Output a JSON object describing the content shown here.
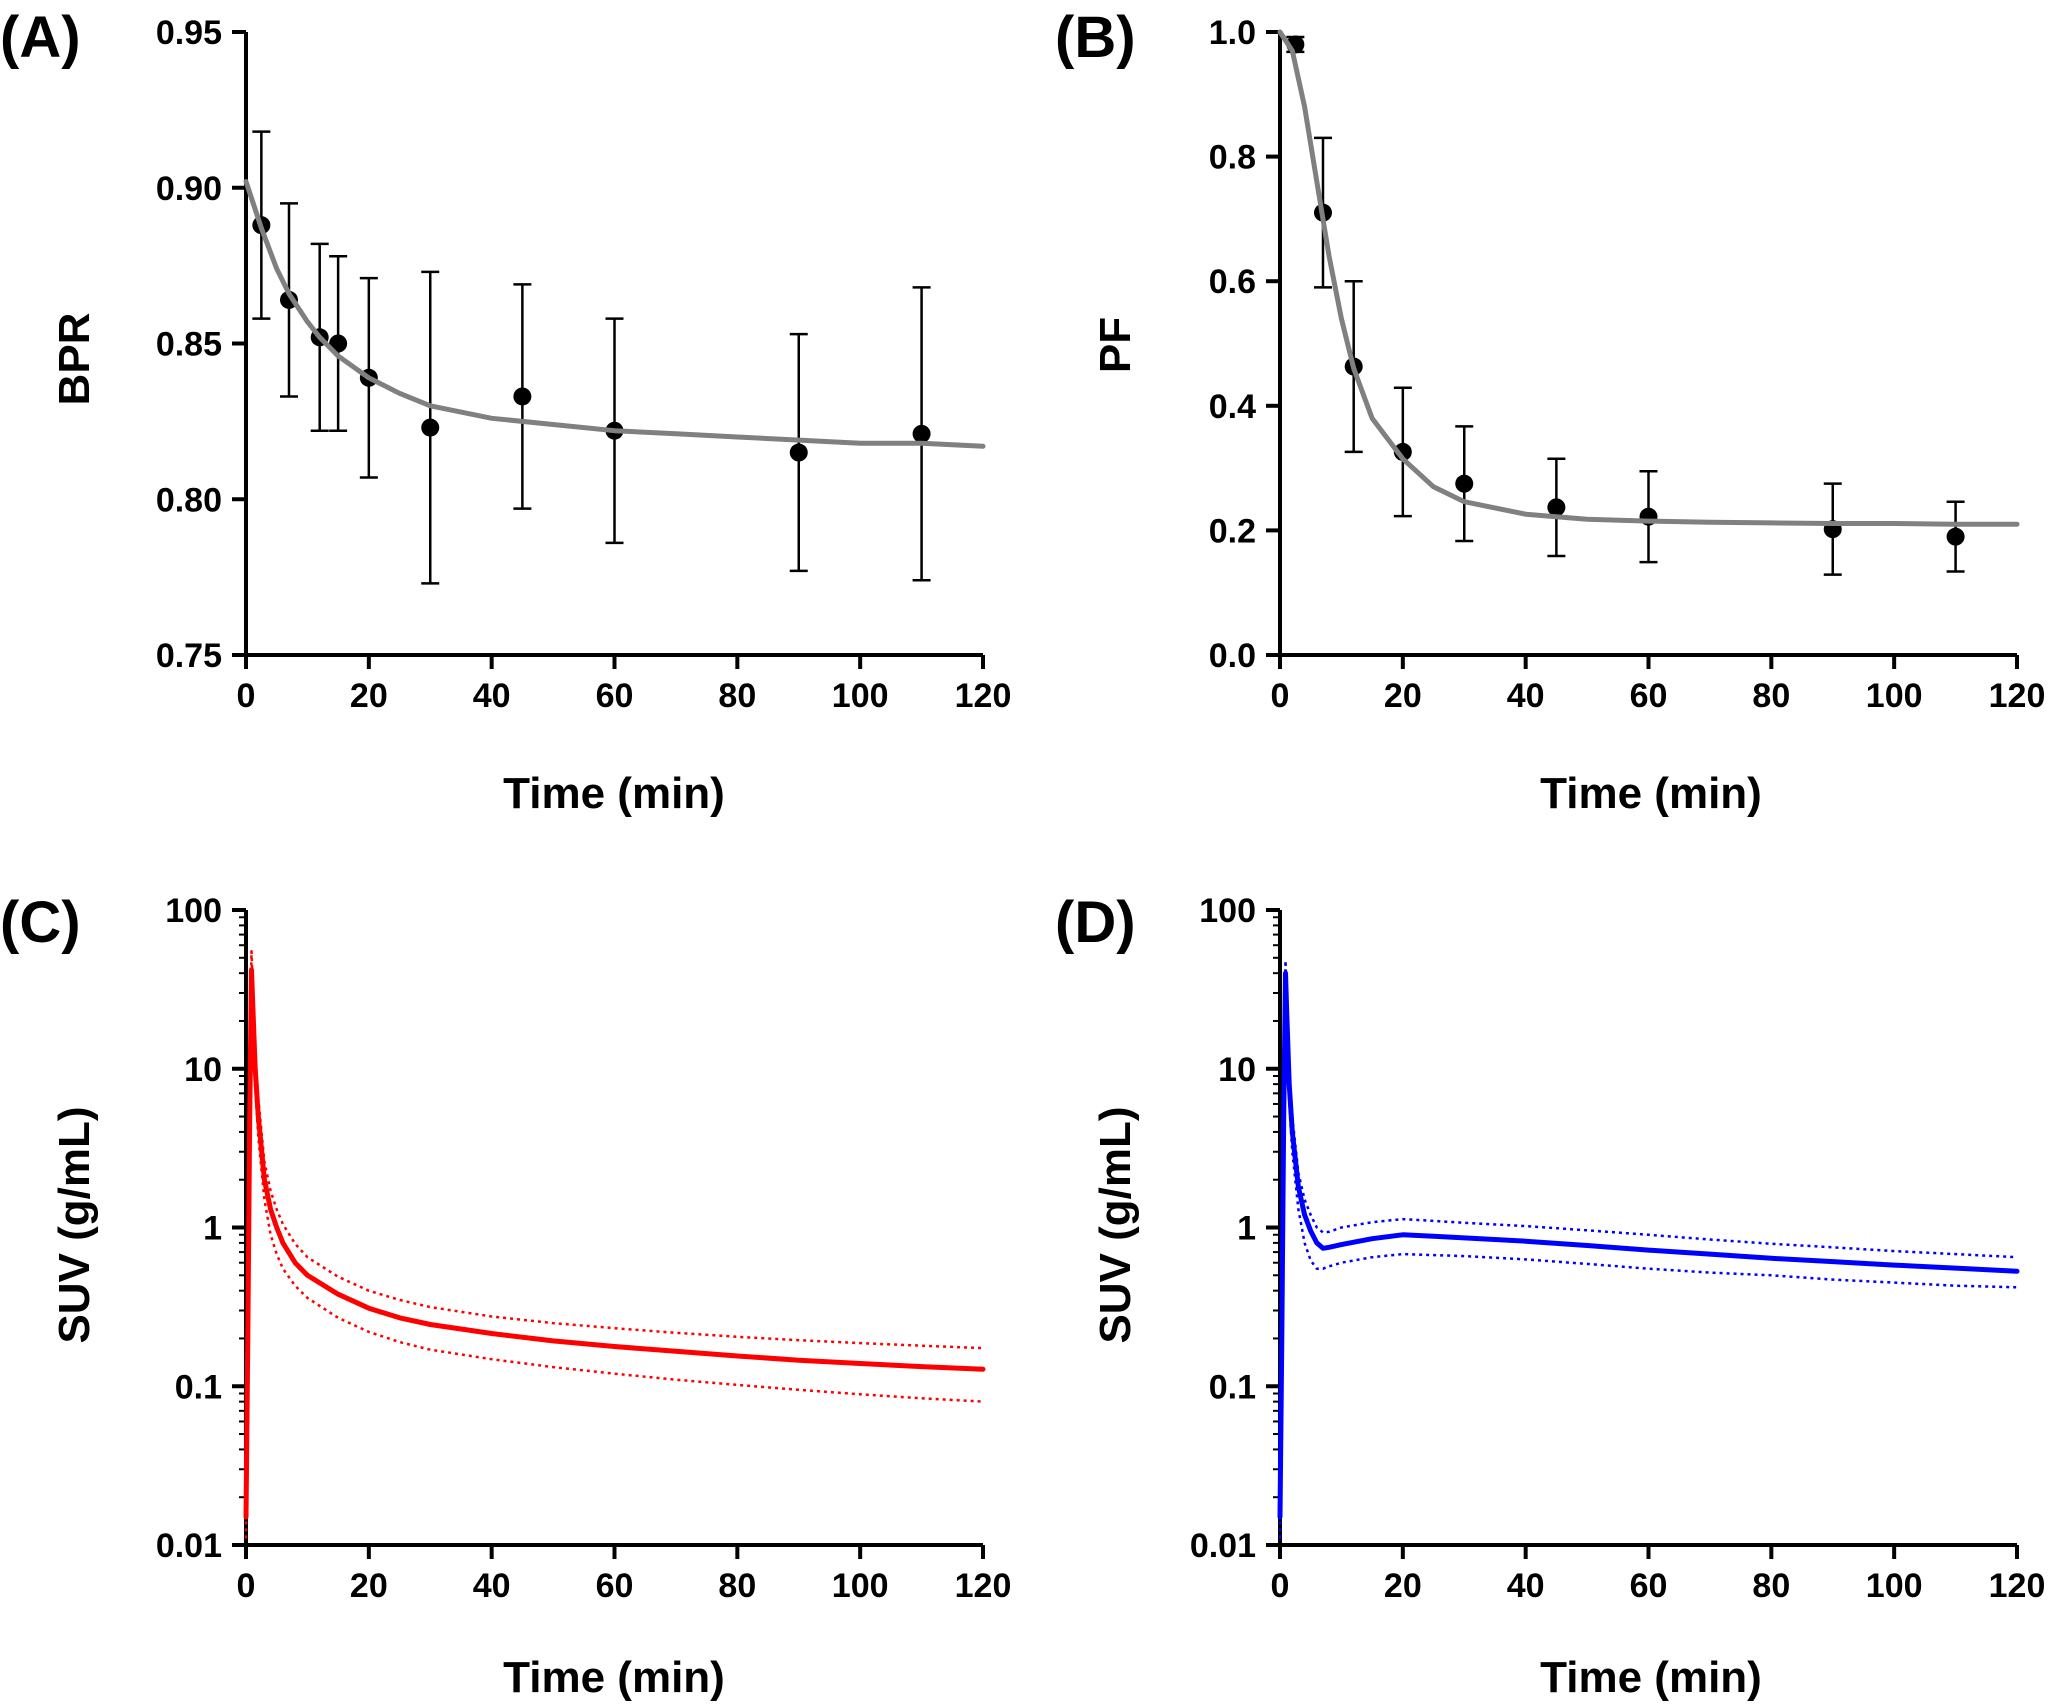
{
  "chart_data": [
    {
      "panel": "(A)",
      "type": "scatter",
      "xlabel": "Time (min)",
      "ylabel": "BPR",
      "xlim": [
        0,
        120
      ],
      "ylim": [
        0.75,
        0.95
      ],
      "x_ticks": [
        "0",
        "20",
        "40",
        "60",
        "80",
        "100",
        "120"
      ],
      "y_ticks": [
        "0.75",
        "0.80",
        "0.85",
        "0.90",
        "0.95"
      ],
      "colors": {
        "points": "#000000",
        "fit": "#808080"
      },
      "series": [
        {
          "kind": "points_with_error_bars",
          "x": [
            2.5,
            7,
            12,
            15,
            20,
            30,
            45,
            60,
            90,
            110
          ],
          "y": [
            0.888,
            0.864,
            0.852,
            0.85,
            0.839,
            0.823,
            0.833,
            0.822,
            0.815,
            0.821
          ],
          "err": [
            0.03,
            0.031,
            0.03,
            0.028,
            0.032,
            0.05,
            0.036,
            0.036,
            0.038,
            0.047
          ]
        },
        {
          "kind": "fit_curve",
          "x": [
            0,
            2.5,
            5,
            7,
            10,
            12,
            15,
            20,
            25,
            30,
            40,
            50,
            60,
            70,
            80,
            90,
            100,
            110,
            120
          ],
          "y": [
            0.902,
            0.887,
            0.874,
            0.866,
            0.857,
            0.852,
            0.846,
            0.839,
            0.834,
            0.83,
            0.826,
            0.824,
            0.822,
            0.821,
            0.82,
            0.819,
            0.818,
            0.818,
            0.817
          ]
        }
      ]
    },
    {
      "panel": "(B)",
      "type": "scatter",
      "xlabel": "Time (min)",
      "ylabel": "PF",
      "xlim": [
        0,
        120
      ],
      "ylim": [
        0,
        1.0
      ],
      "x_ticks": [
        "0",
        "20",
        "40",
        "60",
        "80",
        "100",
        "120"
      ],
      "y_ticks": [
        "0.0",
        "0.2",
        "0.4",
        "0.6",
        "0.8",
        "1.0"
      ],
      "colors": {
        "points": "#000000",
        "fit": "#808080"
      },
      "series": [
        {
          "kind": "points_with_error_bars",
          "x": [
            2.5,
            7,
            12,
            20,
            30,
            45,
            60,
            90,
            110
          ],
          "y": [
            0.98,
            0.71,
            0.463,
            0.326,
            0.275,
            0.237,
            0.222,
            0.202,
            0.19
          ],
          "err": [
            0.012,
            0.12,
            0.137,
            0.103,
            0.092,
            0.078,
            0.073,
            0.073,
            0.056
          ]
        },
        {
          "kind": "fit_curve",
          "x": [
            0,
            2,
            4,
            6,
            8,
            10,
            12,
            15,
            20,
            25,
            30,
            40,
            50,
            60,
            70,
            80,
            90,
            100,
            110,
            120
          ],
          "y": [
            1.0,
            0.97,
            0.88,
            0.76,
            0.64,
            0.54,
            0.46,
            0.38,
            0.315,
            0.27,
            0.246,
            0.226,
            0.218,
            0.215,
            0.213,
            0.212,
            0.211,
            0.211,
            0.21,
            0.21
          ]
        }
      ]
    },
    {
      "panel": "(C)",
      "type": "line",
      "xlabel": "Time (min)",
      "ylabel": "SUV (g/mL)",
      "yscale": "log",
      "xlim": [
        0,
        120
      ],
      "ylim": [
        0.01,
        100
      ],
      "x_ticks": [
        "0",
        "20",
        "40",
        "60",
        "80",
        "100",
        "120"
      ],
      "y_ticks": [
        "0.01",
        "0.1",
        "1",
        "10",
        "100"
      ],
      "colors": {
        "line": "#ff0000"
      },
      "series": [
        {
          "kind": "mean",
          "x": [
            0,
            0.3,
            0.6,
            0.9,
            1.1,
            1.5,
            2,
            3,
            4,
            5,
            6,
            8,
            10,
            15,
            20,
            25,
            30,
            40,
            50,
            60,
            70,
            80,
            90,
            100,
            110,
            120
          ],
          "y": [
            0.015,
            0.2,
            5,
            42,
            25,
            10,
            5,
            2,
            1.3,
            1.0,
            0.8,
            0.6,
            0.5,
            0.38,
            0.31,
            0.27,
            0.245,
            0.215,
            0.193,
            0.178,
            0.166,
            0.155,
            0.146,
            0.139,
            0.133,
            0.128
          ]
        },
        {
          "kind": "upper_bound",
          "x": [
            0,
            0.3,
            0.6,
            0.9,
            1.1,
            1.5,
            2,
            3,
            4,
            5,
            6,
            8,
            10,
            15,
            20,
            25,
            30,
            40,
            50,
            60,
            70,
            80,
            90,
            100,
            110,
            120
          ],
          "y": [
            0.02,
            0.3,
            7,
            55,
            32,
            12.5,
            6.5,
            2.6,
            1.7,
            1.3,
            1.05,
            0.79,
            0.65,
            0.49,
            0.4,
            0.35,
            0.315,
            0.275,
            0.25,
            0.232,
            0.217,
            0.205,
            0.195,
            0.187,
            0.18,
            0.174
          ]
        },
        {
          "kind": "lower_bound",
          "x": [
            0,
            0.3,
            0.6,
            0.9,
            1.1,
            1.5,
            2,
            3,
            4,
            5,
            6,
            8,
            10,
            15,
            20,
            25,
            30,
            40,
            50,
            60,
            70,
            80,
            90,
            100,
            110,
            120
          ],
          "y": [
            0.011,
            0.12,
            3.5,
            30,
            18,
            7.5,
            3.7,
            1.5,
            0.9,
            0.68,
            0.55,
            0.43,
            0.36,
            0.27,
            0.22,
            0.19,
            0.17,
            0.148,
            0.132,
            0.12,
            0.11,
            0.102,
            0.095,
            0.089,
            0.084,
            0.08
          ]
        }
      ]
    },
    {
      "panel": "(D)",
      "type": "line",
      "xlabel": "Time (min)",
      "ylabel": "SUV (g/mL)",
      "yscale": "log",
      "xlim": [
        0,
        120
      ],
      "ylim": [
        0.01,
        100
      ],
      "x_ticks": [
        "0",
        "20",
        "40",
        "60",
        "80",
        "100",
        "120"
      ],
      "y_ticks": [
        "0.01",
        "0.1",
        "1",
        "10",
        "100"
      ],
      "colors": {
        "line": "#0000ff"
      },
      "series": [
        {
          "kind": "mean",
          "x": [
            0,
            0.3,
            0.6,
            0.9,
            1.1,
            1.5,
            2,
            3,
            4,
            5,
            6,
            7,
            8,
            10,
            15,
            20,
            25,
            30,
            40,
            50,
            60,
            70,
            80,
            90,
            100,
            110,
            120
          ],
          "y": [
            0.015,
            0.2,
            5,
            40,
            22,
            8,
            4,
            1.8,
            1.2,
            0.95,
            0.8,
            0.74,
            0.75,
            0.78,
            0.85,
            0.9,
            0.88,
            0.86,
            0.82,
            0.77,
            0.72,
            0.68,
            0.64,
            0.61,
            0.58,
            0.555,
            0.53
          ]
        },
        {
          "kind": "upper_bound",
          "x": [
            0,
            0.3,
            0.6,
            0.9,
            1.1,
            1.5,
            2,
            3,
            4,
            5,
            6,
            7,
            8,
            10,
            15,
            20,
            25,
            30,
            40,
            50,
            60,
            70,
            80,
            90,
            100,
            110,
            120
          ],
          "y": [
            0.02,
            0.3,
            7,
            48,
            28,
            10,
            5,
            2.2,
            1.5,
            1.2,
            1.0,
            0.93,
            0.94,
            1.0,
            1.08,
            1.13,
            1.1,
            1.07,
            1.02,
            0.96,
            0.9,
            0.84,
            0.79,
            0.75,
            0.71,
            0.68,
            0.65
          ]
        },
        {
          "kind": "lower_bound",
          "x": [
            0,
            0.3,
            0.6,
            0.9,
            1.1,
            1.5,
            2,
            3,
            4,
            5,
            6,
            7,
            8,
            10,
            15,
            20,
            25,
            30,
            40,
            50,
            60,
            70,
            80,
            90,
            100,
            110,
            120
          ],
          "y": [
            0.011,
            0.12,
            3.5,
            32,
            17,
            6,
            3,
            1.3,
            0.8,
            0.62,
            0.55,
            0.55,
            0.57,
            0.6,
            0.65,
            0.68,
            0.67,
            0.66,
            0.63,
            0.59,
            0.55,
            0.52,
            0.5,
            0.47,
            0.45,
            0.43,
            0.42
          ]
        }
      ]
    }
  ]
}
